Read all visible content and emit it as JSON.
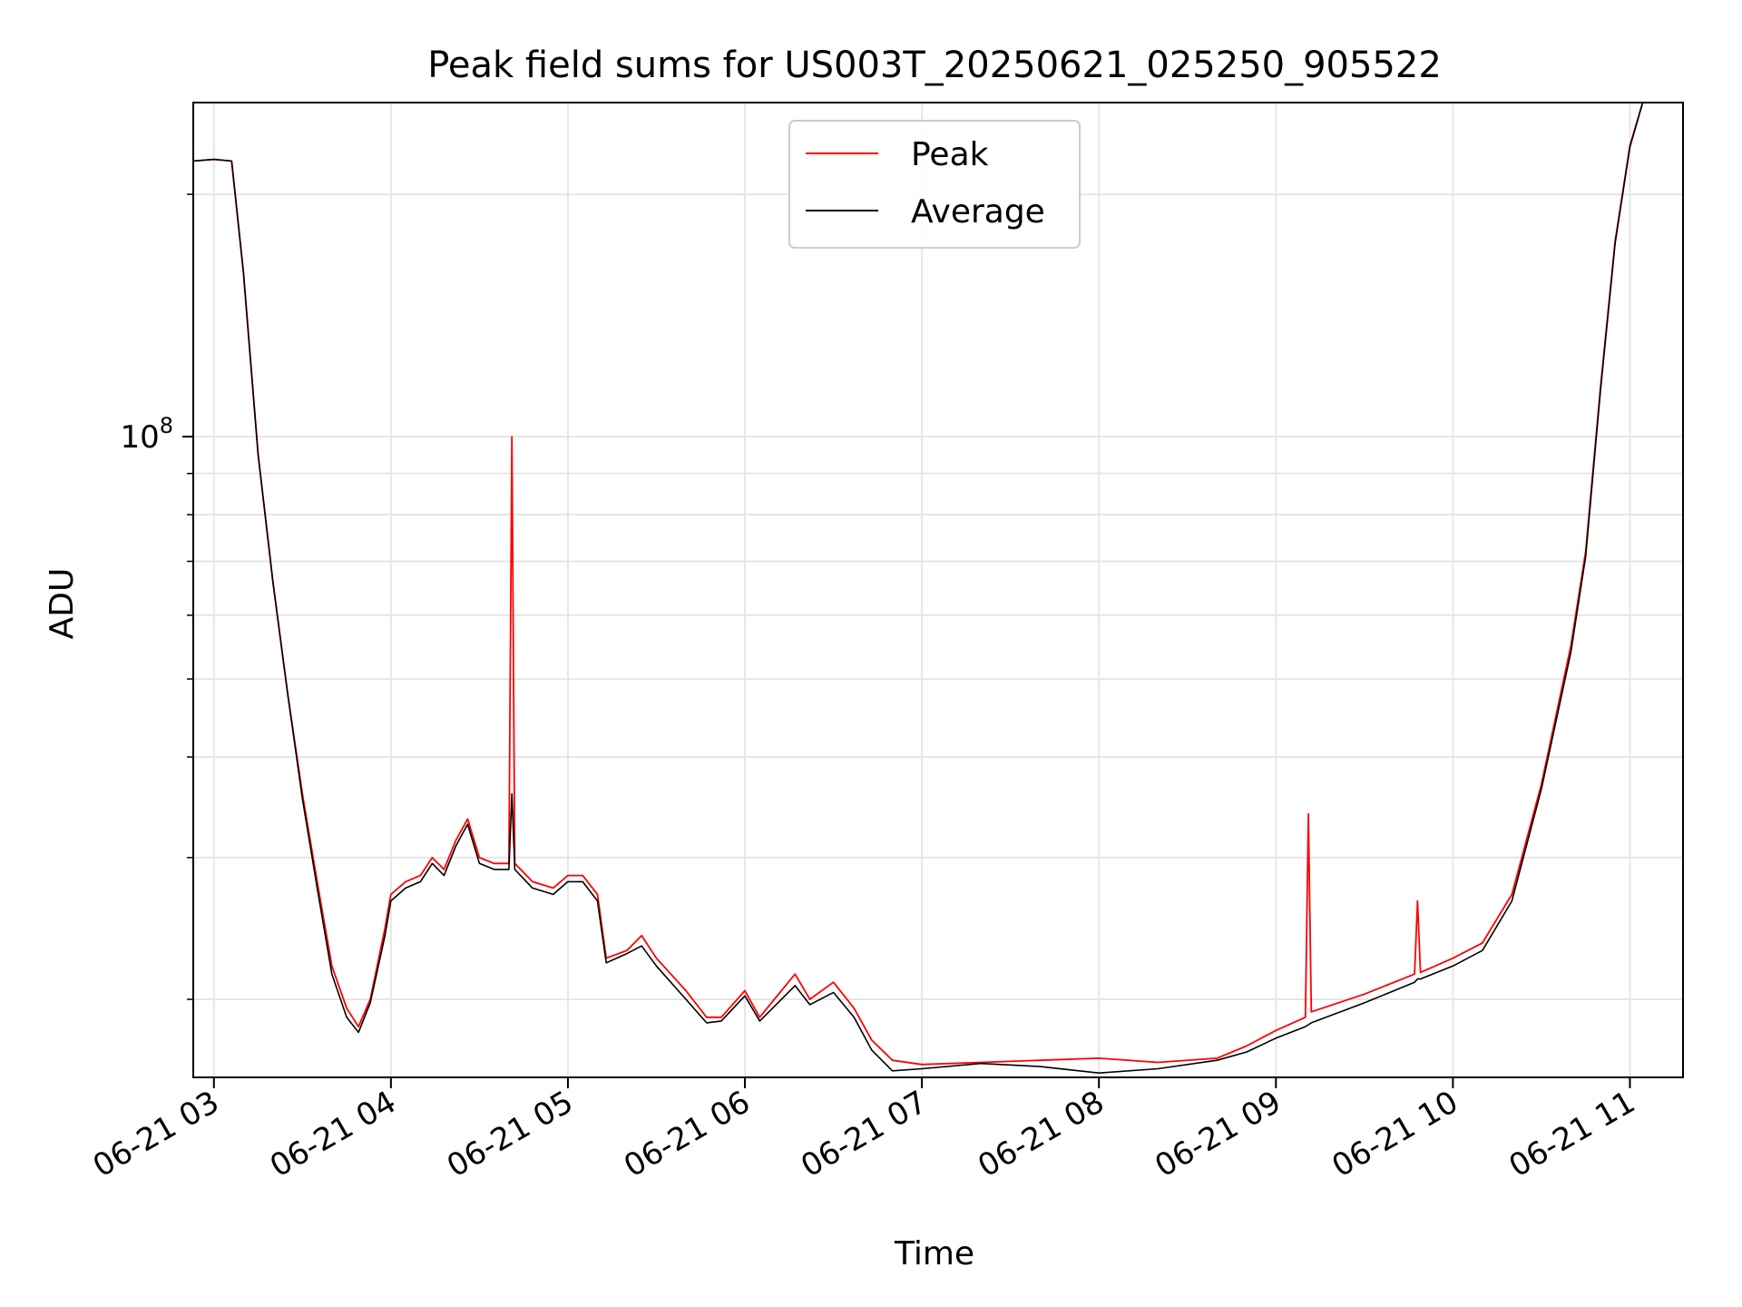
{
  "chart_data": {
    "type": "line",
    "title": "Peak field sums for US003T_20250621_025250_905522",
    "xlabel": "Time",
    "ylabel": "ADU",
    "x_tick_labels": [
      "06-21 03",
      "06-21 04",
      "06-21 05",
      "06-21 06",
      "06-21 07",
      "06-21 08",
      "06-21 09",
      "06-21 10",
      "06-21 11"
    ],
    "y_tick_label_base": "10",
    "y_tick_label_exp": "8",
    "yscale": "log",
    "xlim": [
      "2025-06-21 02:53",
      "2025-06-21 11:18"
    ],
    "ylim": [
      16000000,
      260000000
    ],
    "grid": true,
    "legend_position": "top-center",
    "colors": {
      "peak": "#ff0000",
      "average": "#000000",
      "grid": "#e6e6e6"
    },
    "series": [
      {
        "name": "Peak",
        "color": "#ff0000",
        "points": [
          [
            "2025-06-21 02:53",
            220000000
          ],
          [
            "2025-06-21 03:00",
            221000000
          ],
          [
            "2025-06-21 03:06",
            220000000
          ],
          [
            "2025-06-21 03:10",
            160000000
          ],
          [
            "2025-06-21 03:15",
            95000000
          ],
          [
            "2025-06-21 03:20",
            66000000
          ],
          [
            "2025-06-21 03:25",
            48000000
          ],
          [
            "2025-06-21 03:30",
            36000000
          ],
          [
            "2025-06-21 03:35",
            28000000
          ],
          [
            "2025-06-21 03:40",
            22000000
          ],
          [
            "2025-06-21 03:45",
            19500000
          ],
          [
            "2025-06-21 03:49",
            18500000
          ],
          [
            "2025-06-21 03:53",
            20000000
          ],
          [
            "2025-06-21 03:58",
            24500000
          ],
          [
            "2025-06-21 04:00",
            27000000
          ],
          [
            "2025-06-21 04:05",
            28000000
          ],
          [
            "2025-06-21 04:10",
            28500000
          ],
          [
            "2025-06-21 04:14",
            30000000
          ],
          [
            "2025-06-21 04:18",
            29000000
          ],
          [
            "2025-06-21 04:22",
            31500000
          ],
          [
            "2025-06-21 04:26",
            33500000
          ],
          [
            "2025-06-21 04:30",
            30000000
          ],
          [
            "2025-06-21 04:35",
            29500000
          ],
          [
            "2025-06-21 04:40",
            29500000
          ],
          [
            "2025-06-21 04:41",
            100000000
          ],
          [
            "2025-06-21 04:42",
            29500000
          ],
          [
            "2025-06-21 04:48",
            28000000
          ],
          [
            "2025-06-21 04:55",
            27500000
          ],
          [
            "2025-06-21 05:00",
            28500000
          ],
          [
            "2025-06-21 05:05",
            28500000
          ],
          [
            "2025-06-21 05:10",
            27000000
          ],
          [
            "2025-06-21 05:13",
            22500000
          ],
          [
            "2025-06-21 05:20",
            23000000
          ],
          [
            "2025-06-21 05:25",
            24000000
          ],
          [
            "2025-06-21 05:30",
            22500000
          ],
          [
            "2025-06-21 05:40",
            20500000
          ],
          [
            "2025-06-21 05:47",
            19000000
          ],
          [
            "2025-06-21 05:52",
            19000000
          ],
          [
            "2025-06-21 06:00",
            20500000
          ],
          [
            "2025-06-21 06:05",
            19000000
          ],
          [
            "2025-06-21 06:10",
            20000000
          ],
          [
            "2025-06-21 06:17",
            21500000
          ],
          [
            "2025-06-21 06:22",
            20000000
          ],
          [
            "2025-06-21 06:30",
            21000000
          ],
          [
            "2025-06-21 06:37",
            19500000
          ],
          [
            "2025-06-21 06:43",
            17800000
          ],
          [
            "2025-06-21 06:50",
            16800000
          ],
          [
            "2025-06-21 07:00",
            16600000
          ],
          [
            "2025-06-21 07:20",
            16700000
          ],
          [
            "2025-06-21 07:40",
            16800000
          ],
          [
            "2025-06-21 08:00",
            16900000
          ],
          [
            "2025-06-21 08:20",
            16700000
          ],
          [
            "2025-06-21 08:40",
            16900000
          ],
          [
            "2025-06-21 08:50",
            17500000
          ],
          [
            "2025-06-21 09:00",
            18300000
          ],
          [
            "2025-06-21 09:10",
            19000000
          ],
          [
            "2025-06-21 09:11",
            34000000
          ],
          [
            "2025-06-21 09:12",
            19300000
          ],
          [
            "2025-06-21 09:30",
            20300000
          ],
          [
            "2025-06-21 09:47",
            21500000
          ],
          [
            "2025-06-21 09:48",
            26500000
          ],
          [
            "2025-06-21 09:49",
            21600000
          ],
          [
            "2025-06-21 10:00",
            22500000
          ],
          [
            "2025-06-21 10:10",
            23500000
          ],
          [
            "2025-06-21 10:20",
            27000000
          ],
          [
            "2025-06-21 10:30",
            37000000
          ],
          [
            "2025-06-21 10:40",
            55000000
          ],
          [
            "2025-06-21 10:45",
            72000000
          ],
          [
            "2025-06-21 10:50",
            115000000
          ],
          [
            "2025-06-21 10:55",
            175000000
          ],
          [
            "2025-06-21 11:00",
            230000000
          ],
          [
            "2025-06-21 11:05",
            265000000
          ]
        ]
      },
      {
        "name": "Average",
        "color": "#000000",
        "points": [
          [
            "2025-06-21 02:53",
            220000000
          ],
          [
            "2025-06-21 03:00",
            221000000
          ],
          [
            "2025-06-21 03:06",
            220000000
          ],
          [
            "2025-06-21 03:10",
            160000000
          ],
          [
            "2025-06-21 03:15",
            95000000
          ],
          [
            "2025-06-21 03:20",
            66000000
          ],
          [
            "2025-06-21 03:25",
            48000000
          ],
          [
            "2025-06-21 03:30",
            35500000
          ],
          [
            "2025-06-21 03:35",
            27500000
          ],
          [
            "2025-06-21 03:40",
            21500000
          ],
          [
            "2025-06-21 03:45",
            19000000
          ],
          [
            "2025-06-21 03:49",
            18200000
          ],
          [
            "2025-06-21 03:53",
            19800000
          ],
          [
            "2025-06-21 03:58",
            24000000
          ],
          [
            "2025-06-21 04:00",
            26500000
          ],
          [
            "2025-06-21 04:05",
            27500000
          ],
          [
            "2025-06-21 04:10",
            28000000
          ],
          [
            "2025-06-21 04:14",
            29500000
          ],
          [
            "2025-06-21 04:18",
            28500000
          ],
          [
            "2025-06-21 04:22",
            31000000
          ],
          [
            "2025-06-21 04:26",
            33000000
          ],
          [
            "2025-06-21 04:30",
            29500000
          ],
          [
            "2025-06-21 04:35",
            29000000
          ],
          [
            "2025-06-21 04:40",
            29000000
          ],
          [
            "2025-06-21 04:41",
            36000000
          ],
          [
            "2025-06-21 04:42",
            29000000
          ],
          [
            "2025-06-21 04:48",
            27500000
          ],
          [
            "2025-06-21 04:55",
            27000000
          ],
          [
            "2025-06-21 05:00",
            28000000
          ],
          [
            "2025-06-21 05:05",
            28000000
          ],
          [
            "2025-06-21 05:10",
            26500000
          ],
          [
            "2025-06-21 05:13",
            22200000
          ],
          [
            "2025-06-21 05:20",
            22800000
          ],
          [
            "2025-06-21 05:25",
            23300000
          ],
          [
            "2025-06-21 05:30",
            22000000
          ],
          [
            "2025-06-21 05:40",
            20000000
          ],
          [
            "2025-06-21 05:47",
            18700000
          ],
          [
            "2025-06-21 05:52",
            18800000
          ],
          [
            "2025-06-21 06:00",
            20200000
          ],
          [
            "2025-06-21 06:05",
            18800000
          ],
          [
            "2025-06-21 06:10",
            19600000
          ],
          [
            "2025-06-21 06:17",
            20800000
          ],
          [
            "2025-06-21 06:22",
            19700000
          ],
          [
            "2025-06-21 06:30",
            20400000
          ],
          [
            "2025-06-21 06:37",
            19000000
          ],
          [
            "2025-06-21 06:43",
            17300000
          ],
          [
            "2025-06-21 06:50",
            16300000
          ],
          [
            "2025-06-21 07:00",
            16400000
          ],
          [
            "2025-06-21 07:20",
            16650000
          ],
          [
            "2025-06-21 07:40",
            16500000
          ],
          [
            "2025-06-21 08:00",
            16200000
          ],
          [
            "2025-06-21 08:20",
            16400000
          ],
          [
            "2025-06-21 08:40",
            16800000
          ],
          [
            "2025-06-21 08:50",
            17200000
          ],
          [
            "2025-06-21 09:00",
            17900000
          ],
          [
            "2025-06-21 09:10",
            18500000
          ],
          [
            "2025-06-21 09:11",
            18600000
          ],
          [
            "2025-06-21 09:12",
            18700000
          ],
          [
            "2025-06-21 09:30",
            19800000
          ],
          [
            "2025-06-21 09:47",
            21000000
          ],
          [
            "2025-06-21 09:48",
            21200000
          ],
          [
            "2025-06-21 09:49",
            21200000
          ],
          [
            "2025-06-21 10:00",
            22000000
          ],
          [
            "2025-06-21 10:10",
            23000000
          ],
          [
            "2025-06-21 10:20",
            26500000
          ],
          [
            "2025-06-21 10:30",
            36500000
          ],
          [
            "2025-06-21 10:40",
            54000000
          ],
          [
            "2025-06-21 10:45",
            71000000
          ],
          [
            "2025-06-21 10:50",
            114000000
          ],
          [
            "2025-06-21 10:55",
            174000000
          ],
          [
            "2025-06-21 11:00",
            229000000
          ],
          [
            "2025-06-21 11:05",
            265000000
          ]
        ]
      }
    ]
  }
}
